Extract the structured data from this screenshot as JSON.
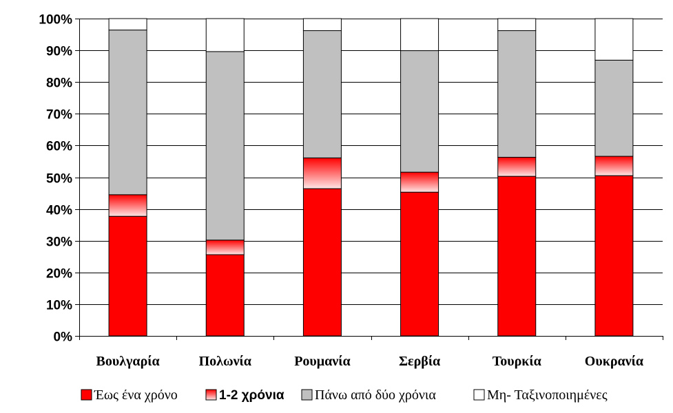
{
  "chart_data": {
    "type": "bar",
    "stacked": true,
    "percent": true,
    "categories": [
      "Βουλγαρία",
      "Πολωνία",
      "Ρουμανία",
      "Σερβία",
      "Τουρκία",
      "Ουκρανία"
    ],
    "series": [
      {
        "name": "Έως ένα χρόνο",
        "color": "#ff0000",
        "values": [
          37.7,
          25.6,
          46.4,
          45.3,
          50.3,
          50.5
        ]
      },
      {
        "name": "1-2 χρόνια",
        "color": "#ff4d4d",
        "values": [
          6.8,
          4.6,
          9.7,
          6.3,
          6.0,
          6.1
        ]
      },
      {
        "name": "Πάνω από δύο χρόνια",
        "color": "#c0c0c0",
        "values": [
          51.9,
          59.4,
          40.1,
          38.3,
          39.9,
          30.3
        ]
      },
      {
        "name": "Μη- Ταξινοποιημένες",
        "color": "#ffffff",
        "values": [
          3.6,
          10.4,
          3.8,
          10.1,
          3.8,
          13.1
        ]
      }
    ],
    "ylim": [
      0,
      100
    ],
    "yticks": [
      "0%",
      "10%",
      "20%",
      "30%",
      "40%",
      "50%",
      "60%",
      "70%",
      "80%",
      "90%",
      "100%"
    ],
    "grid": true,
    "legend": "bottom",
    "title": "",
    "xlabel": "",
    "ylabel": ""
  }
}
